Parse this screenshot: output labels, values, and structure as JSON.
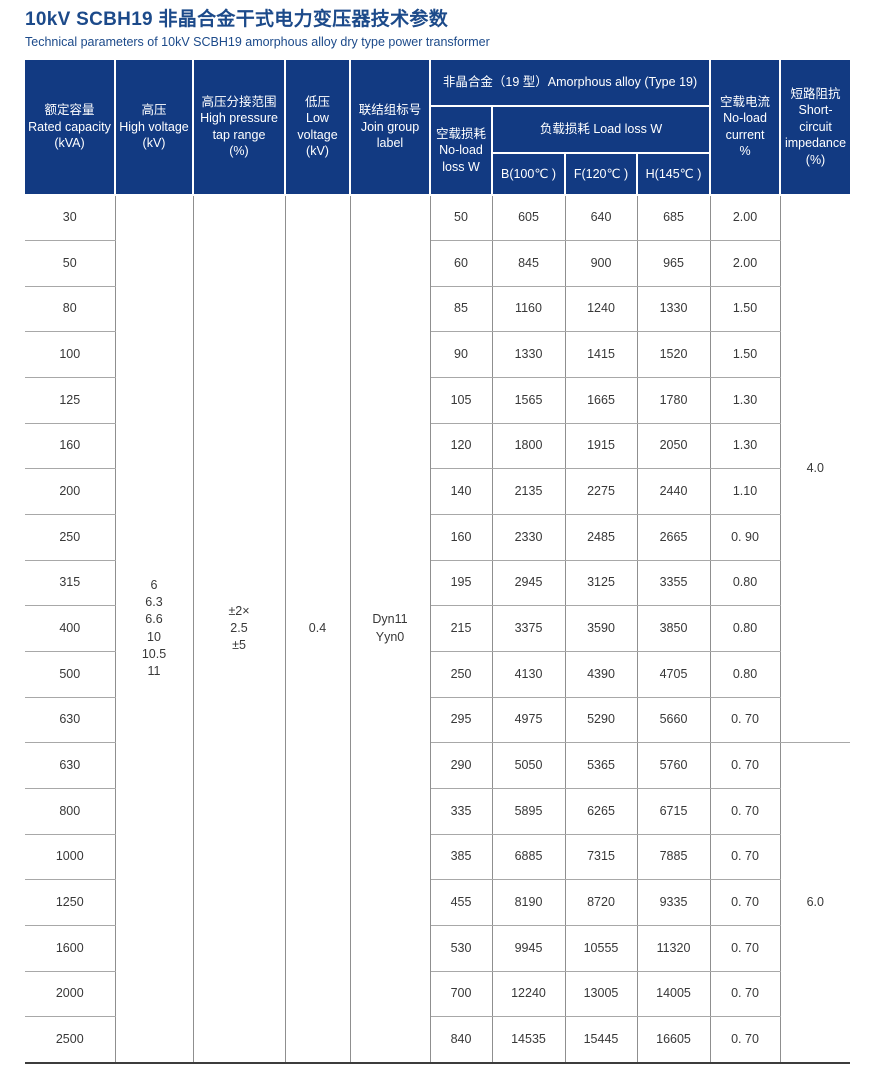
{
  "page": {
    "title": "10kV SCBH19 非晶合金干式电力变压器技术参数",
    "subtitle": "Technical parameters of 10kV SCBH19 amorphous alloy dry type power transformer"
  },
  "colors": {
    "header_bg": "#123a82",
    "title_text": "#1c4a8a",
    "grid_vertical": "#8f8f8f",
    "grid_horizontal": "#a8a8a8",
    "table_bottom_rule": "#3c3c3c",
    "body_text": "#383838",
    "header_text": "#ffffff"
  },
  "table": {
    "headers": {
      "rated_capacity": "额定容量\nRated capacity\n(kVA)",
      "high_voltage": "高压\nHigh voltage\n(kV)",
      "tap_range": "高压分接范围\nHigh pressure\ntap range\n(%)",
      "low_voltage": "低压\nLow\nvoltage\n(kV)",
      "join_group": "联结组标号\nJoin group\nlabel",
      "amorphous_group": "非晶合金（19 型）Amorphous alloy (Type 19)",
      "no_load_loss": "空载损耗\nNo-load\nloss W",
      "load_loss_group": "负载损耗 Load loss W",
      "load_loss_b": "B(100℃ )",
      "load_loss_f": "F(120℃ )",
      "load_loss_h": "H(145℃ )",
      "no_load_current": "空载电流\nNo-load\ncurrent\n%",
      "short_circuit_impedance": "短路阻抗\nShort-\ncircuit\nimpedance\n(%)"
    },
    "merged": {
      "high_voltage": "6\n6.3\n6.6\n10\n10.5\n11",
      "tap_range": "±2×\n2.5\n±5",
      "low_voltage": "0.4",
      "join_group": "Dyn11\nYyn0"
    },
    "impedance_sections": [
      {
        "value": "4.0",
        "row_start": 0,
        "row_count": 12
      },
      {
        "value": "6.0",
        "row_start": 12,
        "row_count": 7
      }
    ],
    "rows": [
      {
        "capacity": "30",
        "no_load_loss": "50",
        "b": "605",
        "f": "640",
        "h": "685",
        "current": "2.00"
      },
      {
        "capacity": "50",
        "no_load_loss": "60",
        "b": "845",
        "f": "900",
        "h": "965",
        "current": "2.00"
      },
      {
        "capacity": "80",
        "no_load_loss": "85",
        "b": "1160",
        "f": "1240",
        "h": "1330",
        "current": "1.50"
      },
      {
        "capacity": "100",
        "no_load_loss": "90",
        "b": "1330",
        "f": "1415",
        "h": "1520",
        "current": "1.50"
      },
      {
        "capacity": "125",
        "no_load_loss": "105",
        "b": "1565",
        "f": "1665",
        "h": "1780",
        "current": "1.30"
      },
      {
        "capacity": "160",
        "no_load_loss": "120",
        "b": "1800",
        "f": "1915",
        "h": "2050",
        "current": "1.30"
      },
      {
        "capacity": "200",
        "no_load_loss": "140",
        "b": "2135",
        "f": "2275",
        "h": "2440",
        "current": "1.10"
      },
      {
        "capacity": "250",
        "no_load_loss": "160",
        "b": "2330",
        "f": "2485",
        "h": "2665",
        "current": "0. 90"
      },
      {
        "capacity": "315",
        "no_load_loss": "195",
        "b": "2945",
        "f": "3125",
        "h": "3355",
        "current": "0.80"
      },
      {
        "capacity": "400",
        "no_load_loss": "215",
        "b": "3375",
        "f": "3590",
        "h": "3850",
        "current": "0.80"
      },
      {
        "capacity": "500",
        "no_load_loss": "250",
        "b": "4130",
        "f": "4390",
        "h": "4705",
        "current": "0.80"
      },
      {
        "capacity": "630",
        "no_load_loss": "295",
        "b": "4975",
        "f": "5290",
        "h": "5660",
        "current": "0. 70"
      },
      {
        "capacity": "630",
        "no_load_loss": "290",
        "b": "5050",
        "f": "5365",
        "h": "5760",
        "current": "0. 70"
      },
      {
        "capacity": "800",
        "no_load_loss": "335",
        "b": "5895",
        "f": "6265",
        "h": "6715",
        "current": "0. 70"
      },
      {
        "capacity": "1000",
        "no_load_loss": "385",
        "b": "6885",
        "f": "7315",
        "h": "7885",
        "current": "0. 70"
      },
      {
        "capacity": "1250",
        "no_load_loss": "455",
        "b": "8190",
        "f": "8720",
        "h": "9335",
        "current": "0. 70"
      },
      {
        "capacity": "1600",
        "no_load_loss": "530",
        "b": "9945",
        "f": "10555",
        "h": "11320",
        "current": "0. 70"
      },
      {
        "capacity": "2000",
        "no_load_loss": "700",
        "b": "12240",
        "f": "13005",
        "h": "14005",
        "current": "0. 70"
      },
      {
        "capacity": "2500",
        "no_load_loss": "840",
        "b": "14535",
        "f": "15445",
        "h": "16605",
        "current": "0. 70"
      }
    ]
  }
}
